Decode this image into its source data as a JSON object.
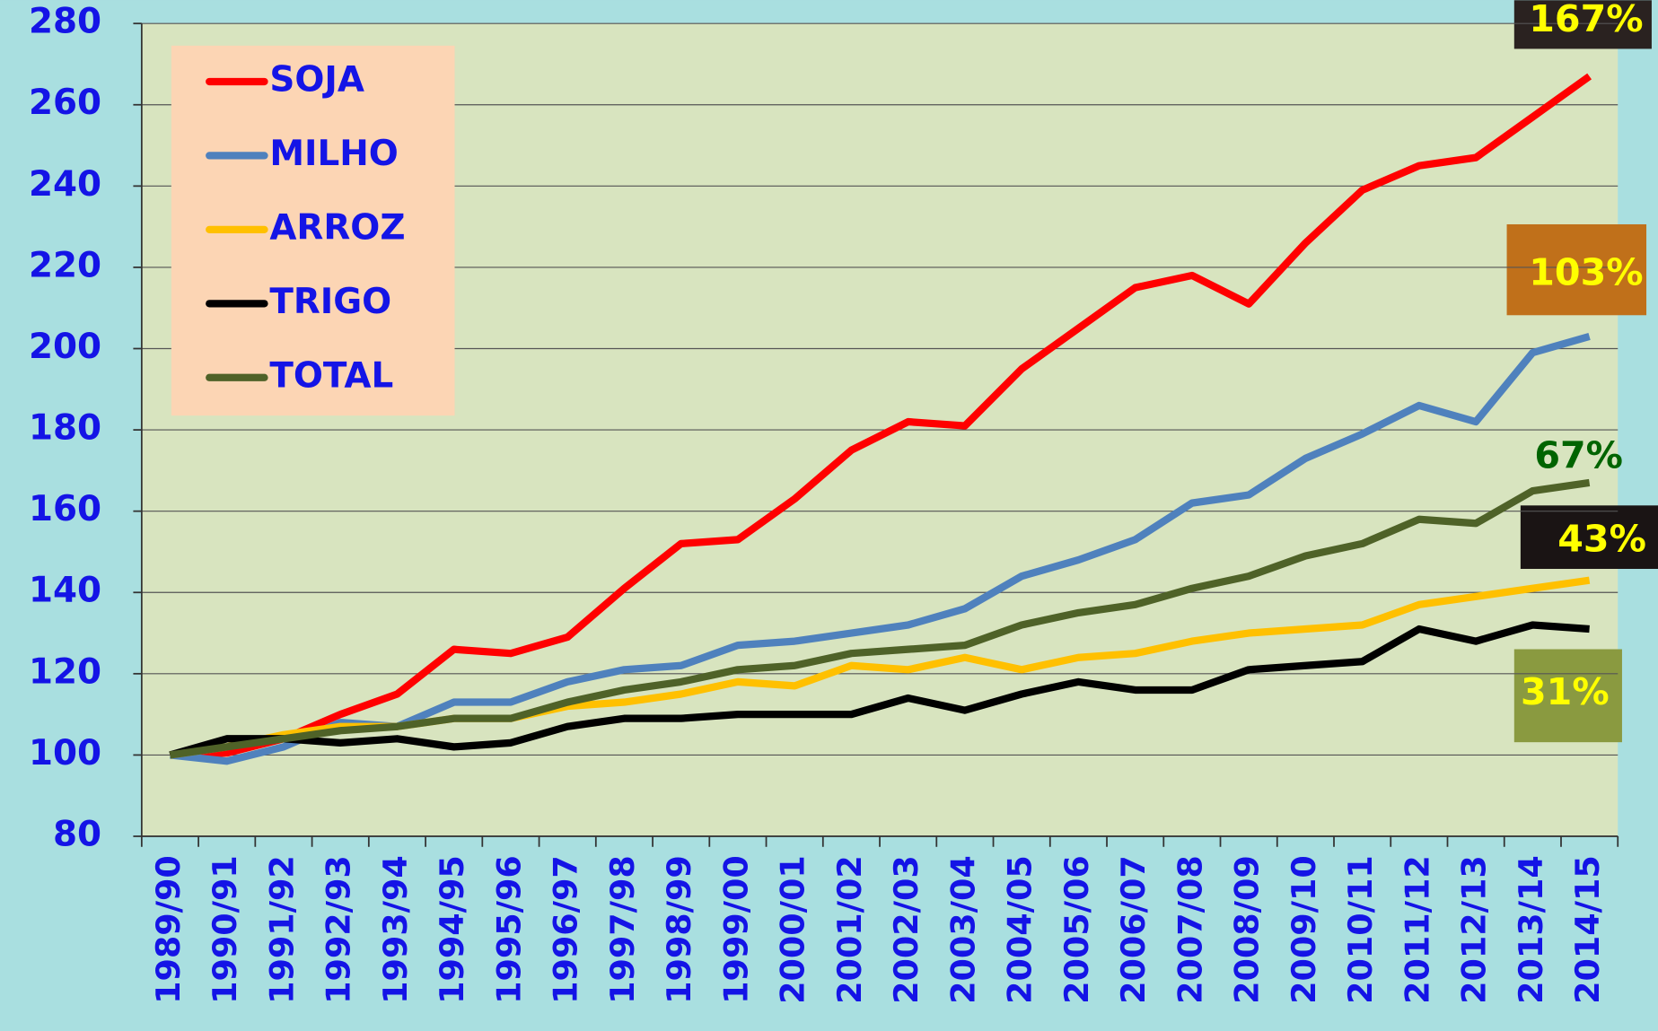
{
  "chart_data": {
    "type": "line",
    "categories": [
      "1989/90",
      "1990/91",
      "1991/92",
      "1992/93",
      "1993/94",
      "1994/95",
      "1995/96",
      "1996/97",
      "1997/98",
      "1998/99",
      "1999/00",
      "2000/01",
      "2001/02",
      "2002/03",
      "2003/04",
      "2004/05",
      "2005/06",
      "2006/07",
      "2007/08",
      "2008/09",
      "2009/10",
      "2010/11",
      "2011/12",
      "2012/13",
      "2013/14",
      "2014/15"
    ],
    "series": [
      {
        "name": "SOJA",
        "color": "#ff0000",
        "annotation": "167%",
        "annotation_color": "#ffff00",
        "values": [
          100,
          100.5,
          104,
          110,
          115,
          126,
          125,
          129,
          141,
          152,
          153,
          163,
          175,
          182,
          181,
          195,
          205,
          215,
          218,
          211,
          226,
          239,
          245,
          247,
          257,
          267
        ]
      },
      {
        "name": "MILHO",
        "color": "#4f81bd",
        "annotation": "103%",
        "annotation_color": "#ffff00",
        "values": [
          100,
          98.5,
          102,
          108,
          107,
          113,
          113,
          118,
          121,
          122,
          127,
          128,
          130,
          132,
          136,
          144,
          148,
          153,
          162,
          164,
          173,
          179,
          186,
          182,
          199,
          203
        ]
      },
      {
        "name": "ARROZ",
        "color": "#ffc000",
        "annotation": "43%",
        "annotation_color": "#ffff00",
        "values": [
          100,
          102,
          105,
          107,
          107,
          109,
          109,
          112,
          113,
          115,
          118,
          117,
          122,
          121,
          124,
          121,
          124,
          125,
          128,
          130,
          131,
          132,
          137,
          139,
          141,
          143
        ]
      },
      {
        "name": "TRIGO",
        "color": "#000000",
        "annotation": "31%",
        "annotation_color": "#ffff00",
        "values": [
          100,
          104,
          104,
          103,
          104,
          102,
          103,
          107,
          109,
          109,
          110,
          110,
          110,
          114,
          111,
          115,
          118,
          116,
          116,
          121,
          122,
          123,
          131,
          128,
          132,
          131
        ]
      },
      {
        "name": "TOTAL",
        "color": "#4f6228",
        "annotation": "67%",
        "annotation_color": "#006400",
        "values": [
          100,
          102,
          104,
          106,
          107,
          109,
          109,
          113,
          116,
          118,
          121,
          122,
          125,
          126,
          127,
          132,
          135,
          137,
          141,
          144,
          149,
          152,
          158,
          157,
          165,
          167
        ]
      }
    ],
    "ylim": [
      80,
      280
    ],
    "yticks": [
      80,
      100,
      120,
      140,
      160,
      180,
      200,
      220,
      240,
      260,
      280
    ],
    "grid": true
  }
}
